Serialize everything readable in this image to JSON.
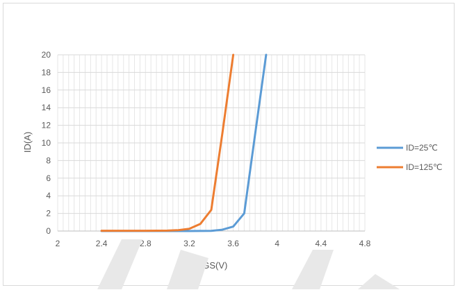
{
  "chart_data": {
    "type": "line",
    "title": "",
    "xlabel": "VGS(V)",
    "ylabel": "ID(A)",
    "xlim": [
      2,
      4.8
    ],
    "ylim": [
      0,
      20
    ],
    "x_ticks": [
      "2",
      "2.4",
      "2.8",
      "3.2",
      "3.6",
      "4",
      "4.4",
      "4.8"
    ],
    "y_ticks": [
      "0",
      "2",
      "4",
      "6",
      "8",
      "10",
      "12",
      "14",
      "16",
      "18",
      "20"
    ],
    "grid": true,
    "legend_position": "right",
    "series": [
      {
        "name": "ID=25℃",
        "color": "#5b9bd5",
        "x": [
          2.4,
          2.6,
          2.8,
          3.0,
          3.2,
          3.4,
          3.5,
          3.6,
          3.7,
          3.8,
          3.9
        ],
        "y": [
          0,
          0,
          0,
          0,
          0,
          0.02,
          0.15,
          0.5,
          2.0,
          11.0,
          20.0
        ]
      },
      {
        "name": "ID=125℃",
        "color": "#ed7d31",
        "x": [
          2.4,
          2.6,
          2.8,
          3.0,
          3.1,
          3.2,
          3.3,
          3.4,
          3.5,
          3.6
        ],
        "y": [
          0.03,
          0.03,
          0.03,
          0.05,
          0.1,
          0.25,
          0.8,
          2.4,
          11.0,
          20.0
        ]
      }
    ]
  }
}
